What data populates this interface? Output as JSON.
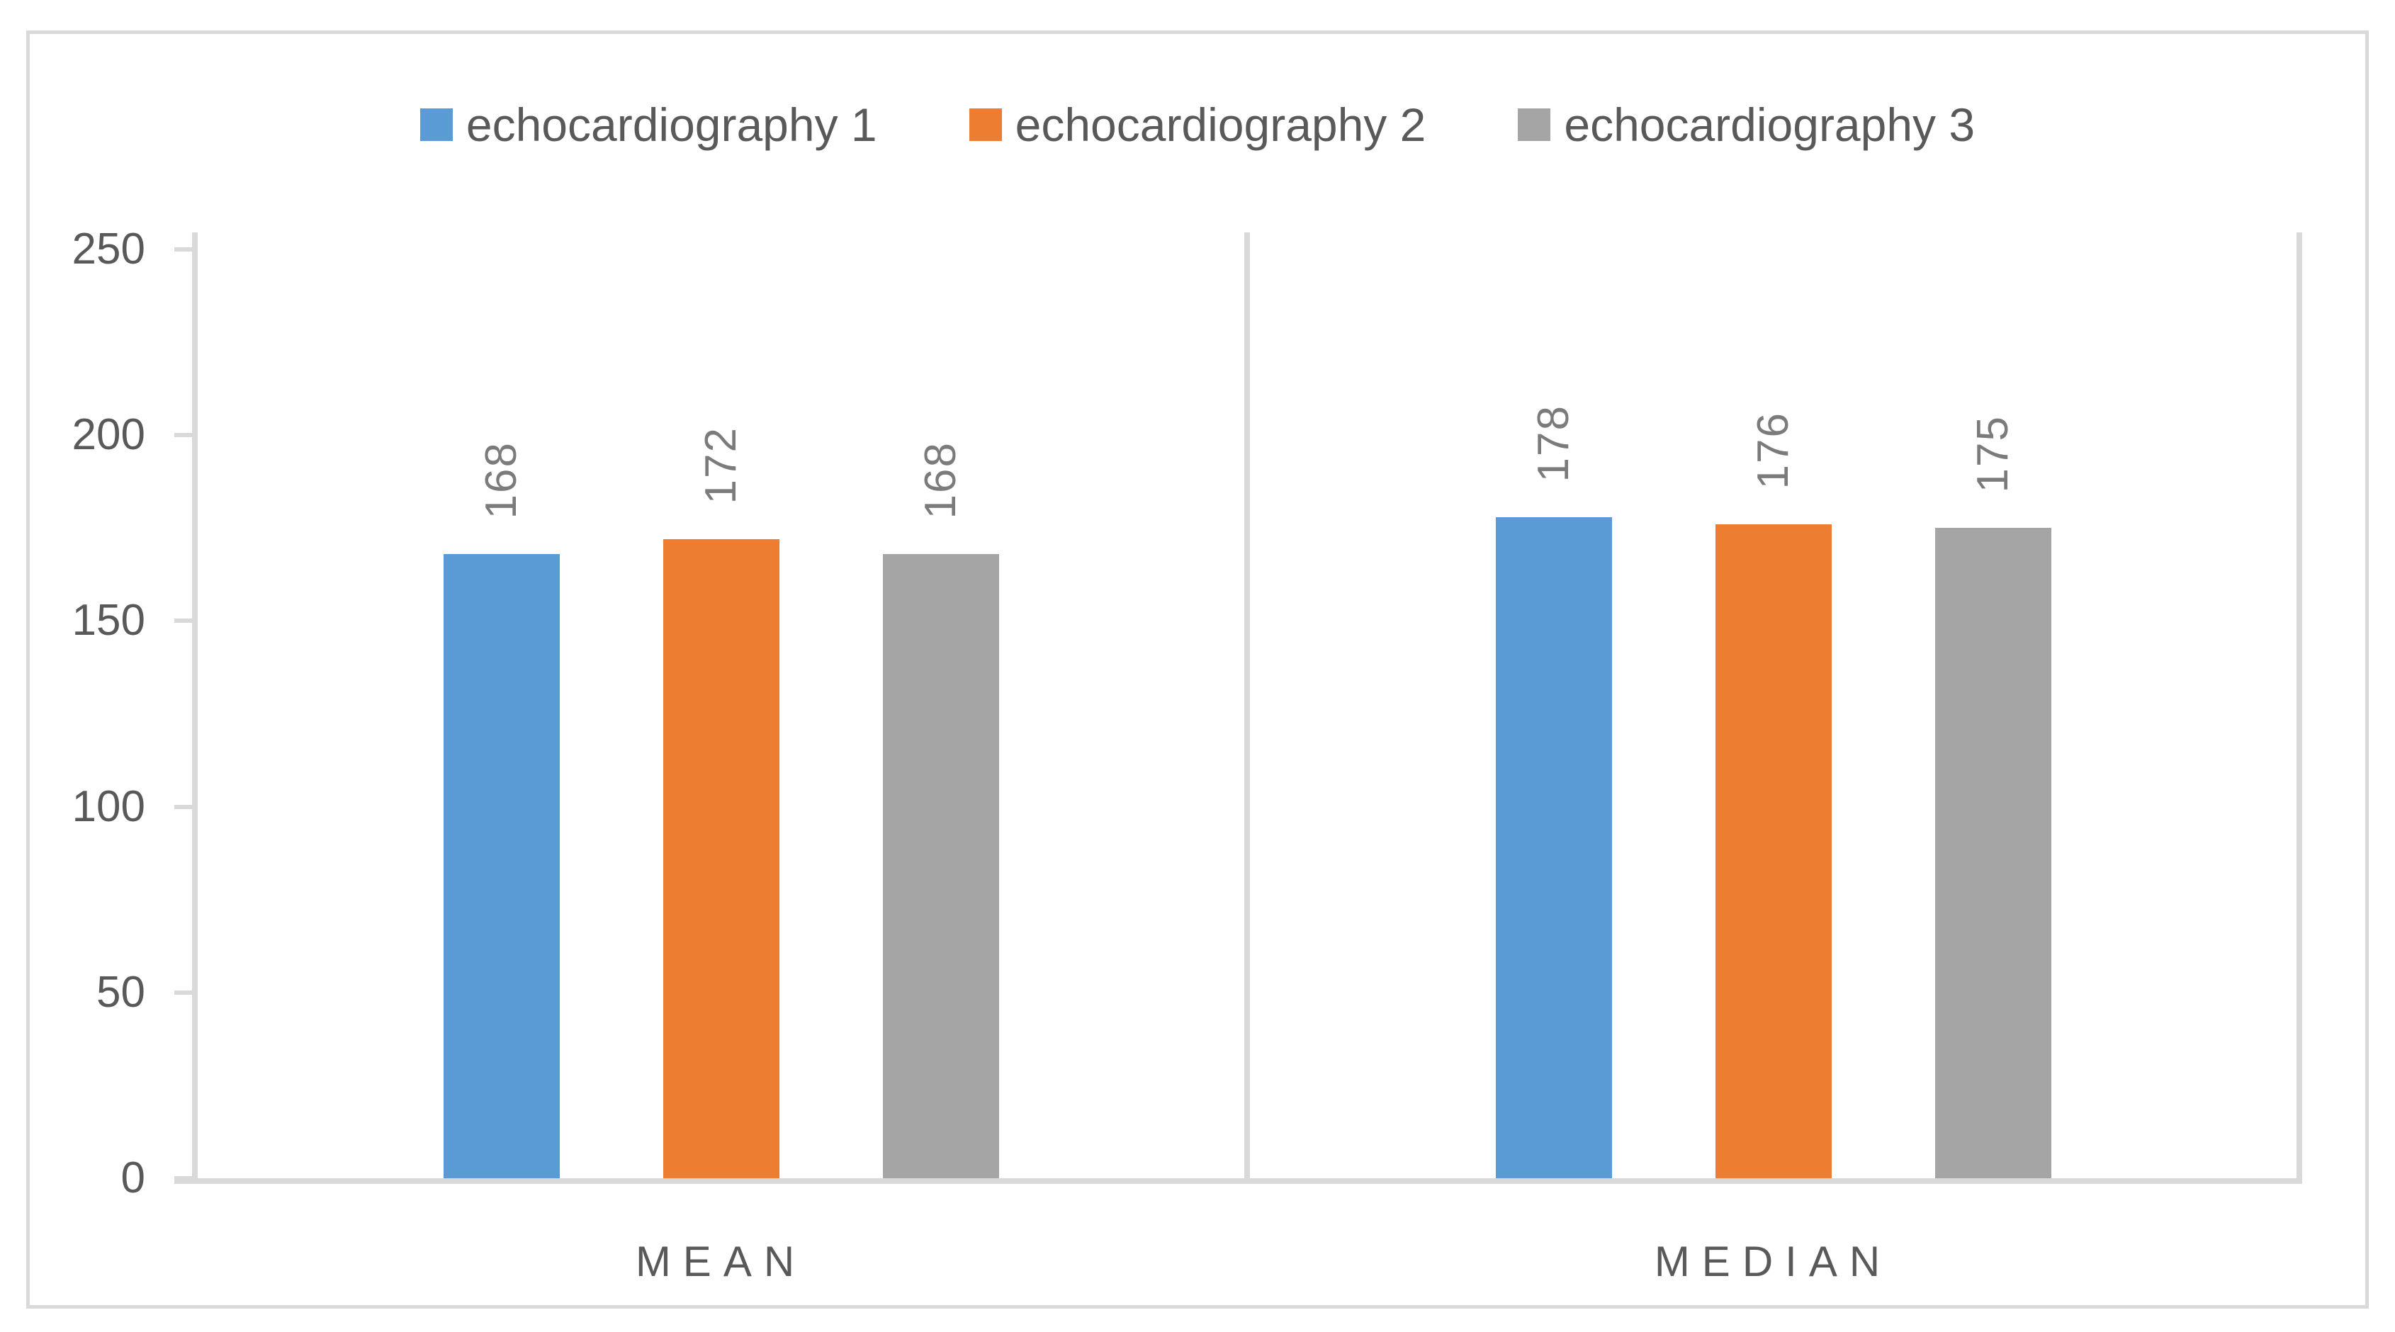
{
  "chart_data": {
    "type": "bar",
    "title": "",
    "xlabel": "",
    "ylabel": "",
    "categories": [
      "MEAN",
      "MEDIAN"
    ],
    "series": [
      {
        "name": "echocardiography 1",
        "color": "#5B9BD5",
        "values": [
          168,
          178
        ]
      },
      {
        "name": "echocardiography 2",
        "color": "#ED7D31",
        "values": [
          172,
          176
        ]
      },
      {
        "name": "echocardiography 3",
        "color": "#A5A5A5",
        "values": [
          168,
          175
        ]
      }
    ],
    "ylim": [
      0,
      250
    ],
    "yticks": [
      0,
      50,
      100,
      150,
      200,
      250
    ],
    "grid": false,
    "legend_position": "top",
    "data_labels": "values shown rotated 90 degrees above each bar"
  },
  "colors": {
    "axis_line": "#D9D9D9",
    "frame_border": "#D9D9D9",
    "axis_text": "#595959",
    "legend_text": "#595959",
    "value_label_text": "#7B7B7B",
    "background": "#FFFFFF"
  }
}
